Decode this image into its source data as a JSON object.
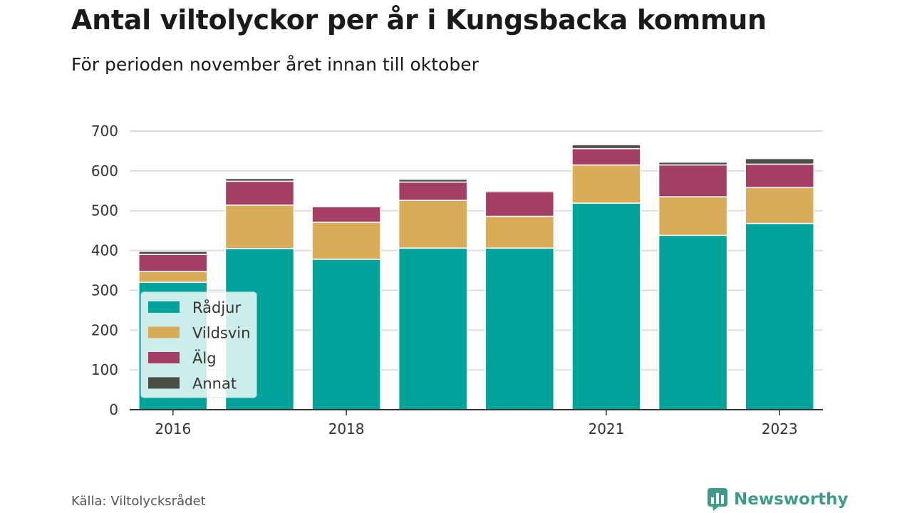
{
  "title": "Antal viltolyckor per år i Kungsbacka kommun",
  "subtitle": "För perioden november året innan till oktober",
  "source": "Källa: Viltolycksrådet",
  "brand": {
    "name": "Newsworthy",
    "icon": "bar-chart-speech-bubble-icon",
    "color": "#3f9a8c"
  },
  "chart_data": {
    "type": "bar",
    "stacked": true,
    "categories": [
      "2016",
      "2017",
      "2018",
      "2019",
      "2020",
      "2021",
      "2022",
      "2023"
    ],
    "x_tick_labels": [
      "2016",
      "",
      "2018",
      "",
      "",
      "2021",
      "",
      "2023"
    ],
    "series": [
      {
        "name": "Rådjur",
        "color": "#00a39a",
        "values": [
          320,
          405,
          378,
          406,
          406,
          519,
          438,
          468
        ]
      },
      {
        "name": "Vildsvin",
        "color": "#d9ac5a",
        "values": [
          27,
          109,
          93,
          120,
          80,
          96,
          97,
          90
        ]
      },
      {
        "name": "Älg",
        "color": "#a43e64",
        "values": [
          43,
          60,
          39,
          46,
          62,
          41,
          80,
          59
        ]
      },
      {
        "name": "Annat",
        "color": "#4a4f44",
        "values": [
          8,
          7,
          0,
          7,
          3,
          10,
          7,
          14
        ]
      }
    ],
    "ylim": [
      0,
      700
    ],
    "yticks": [
      0,
      100,
      200,
      300,
      400,
      500,
      600,
      700
    ],
    "grid": true,
    "legend_position": "bottom-left, inside plot"
  }
}
